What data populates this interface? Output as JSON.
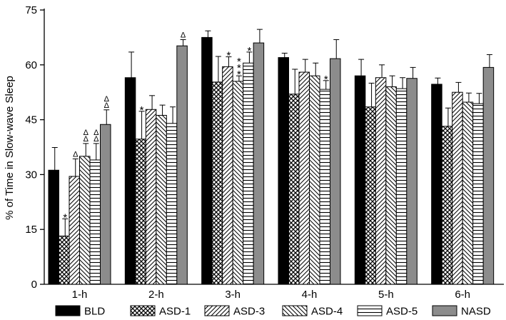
{
  "chart_data": {
    "type": "bar",
    "title": "",
    "xlabel": "",
    "ylabel": "% of Time in Slow-wave Sleep",
    "ylim": [
      0,
      75
    ],
    "yticks": [
      0,
      15,
      30,
      45,
      60,
      75
    ],
    "grid": false,
    "legend_position": "bottom",
    "categories": [
      "1-h",
      "2-h",
      "3-h",
      "4-h",
      "5-h",
      "6-h"
    ],
    "series": [
      {
        "name": "BLD",
        "pattern": "solid-black",
        "values": [
          31.2,
          56.5,
          67.5,
          62.0,
          57.0,
          54.7
        ],
        "errors": [
          6.2,
          7.0,
          1.8,
          1.2,
          4.5,
          1.7
        ]
      },
      {
        "name": "ASD-1",
        "pattern": "crosshatch",
        "values": [
          13.2,
          39.7,
          55.3,
          52.0,
          48.5,
          43.2
        ],
        "errors": [
          4.7,
          7.6,
          7.0,
          6.8,
          6.5,
          5.0
        ]
      },
      {
        "name": "ASD-3",
        "pattern": "diag-right",
        "values": [
          29.5,
          47.8,
          59.5,
          58.0,
          56.5,
          52.5
        ],
        "errors": [
          4.8,
          3.8,
          2.7,
          3.5,
          3.5,
          2.7
        ]
      },
      {
        "name": "ASD-4",
        "pattern": "diag-left",
        "values": [
          35.0,
          46.2,
          55.5,
          57.0,
          54.0,
          49.8
        ],
        "errors": [
          3.5,
          2.8,
          1.5,
          3.5,
          3.0,
          2.5
        ]
      },
      {
        "name": "ASD-5",
        "pattern": "horizontal",
        "values": [
          34.0,
          44.0,
          60.5,
          53.3,
          53.5,
          49.4
        ],
        "errors": [
          4.5,
          4.5,
          3.0,
          2.4,
          3.0,
          2.8
        ]
      },
      {
        "name": "NASD",
        "pattern": "solid-gray",
        "values": [
          43.7,
          65.2,
          66.0,
          61.7,
          56.3,
          59.3
        ],
        "errors": [
          4.0,
          1.7,
          3.7,
          5.2,
          3.0,
          3.5
        ]
      }
    ],
    "annotations": [
      {
        "category": "1-h",
        "series": "ASD-1",
        "text": "*"
      },
      {
        "category": "1-h",
        "series": "ASD-3",
        "text": "Δ"
      },
      {
        "category": "1-h",
        "series": "ASD-4",
        "text": "Δ"
      },
      {
        "category": "1-h",
        "series": "ASD-4",
        "text": "Δ"
      },
      {
        "category": "1-h",
        "series": "ASD-5",
        "text": "Δ"
      },
      {
        "category": "1-h",
        "series": "ASD-5",
        "text": "Δ"
      },
      {
        "category": "1-h",
        "series": "NASD",
        "text": "Δ"
      },
      {
        "category": "1-h",
        "series": "NASD",
        "text": "Δ"
      },
      {
        "category": "2-h",
        "series": "ASD-1",
        "text": "*"
      },
      {
        "category": "2-h",
        "series": "NASD",
        "text": "Δ"
      },
      {
        "category": "3-h",
        "series": "ASD-3",
        "text": "*"
      },
      {
        "category": "3-h",
        "series": "ASD-4",
        "text": "*"
      },
      {
        "category": "3-h",
        "series": "ASD-4",
        "text": "*"
      },
      {
        "category": "3-h",
        "series": "ASD-4",
        "text": "*"
      },
      {
        "category": "3-h",
        "series": "ASD-5",
        "text": "*"
      },
      {
        "category": "4-h",
        "series": "ASD-5",
        "text": "*"
      }
    ],
    "colors": {
      "bld": "#000000",
      "nasd": "#8c8c8c",
      "pattern": "#000000",
      "background": "#ffffff"
    }
  }
}
